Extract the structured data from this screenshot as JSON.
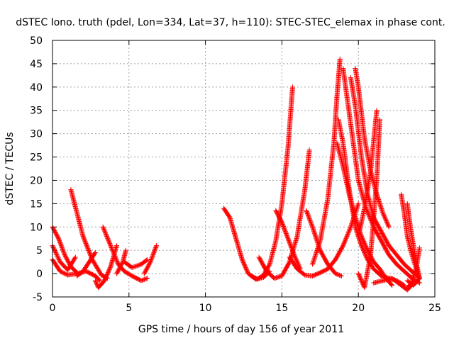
{
  "chart_data": {
    "type": "scatter",
    "title": "dSTEC Iono. truth (pdel, Lon=334, Lat=37, h=110): STEC-STEC_elemax in phase cont.",
    "xlabel": "GPS time / hours of day 156 of year 2011",
    "ylabel": "dSTEC  / TECUs",
    "xlim": [
      0,
      25
    ],
    "ylim": [
      -5,
      50
    ],
    "xticks": [
      0,
      5,
      10,
      15,
      20,
      25
    ],
    "yticks": [
      -5,
      0,
      5,
      10,
      15,
      20,
      25,
      30,
      35,
      40,
      45,
      50
    ],
    "grid": true,
    "marker": "+",
    "color": "#ff0000",
    "arcs": [
      {
        "x": [
          0.0,
          0.4,
          0.8,
          1.2,
          1.6
        ],
        "y": [
          10.0,
          7.5,
          4.0,
          1.5,
          0.2
        ]
      },
      {
        "x": [
          0.0,
          0.5,
          1.0,
          1.5
        ],
        "y": [
          6.0,
          2.5,
          0.8,
          3.5
        ]
      },
      {
        "x": [
          0.0,
          0.5,
          1.0,
          1.6,
          2.2,
          2.8,
          3.1
        ],
        "y": [
          3.0,
          0.5,
          -0.3,
          0.0,
          0.5,
          -0.5,
          -1.5
        ]
      },
      {
        "x": [
          1.2,
          1.6,
          2.0,
          2.6,
          3.2,
          3.6
        ],
        "y": [
          18.0,
          13.0,
          8.0,
          3.0,
          -0.3,
          -1.0
        ]
      },
      {
        "x": [
          1.6,
          2.0,
          2.4,
          2.8
        ],
        "y": [
          -0.5,
          0.5,
          2.5,
          4.5
        ]
      },
      {
        "x": [
          2.8,
          3.0,
          3.4,
          3.8,
          4.2
        ],
        "y": [
          -1.5,
          -3.0,
          -1.5,
          1.5,
          6.0
        ]
      },
      {
        "x": [
          3.3,
          3.8,
          4.3,
          4.7,
          5.2,
          5.8,
          6.2
        ],
        "y": [
          10.0,
          6.0,
          2.0,
          0.5,
          -0.5,
          -1.5,
          -1.0
        ]
      },
      {
        "x": [
          4.2,
          4.6,
          4.8
        ],
        "y": [
          0.0,
          2.5,
          5.0
        ]
      },
      {
        "x": [
          4.7,
          5.2,
          5.8,
          6.2
        ],
        "y": [
          2.5,
          1.3,
          2.0,
          3.0
        ]
      },
      {
        "x": [
          6.0,
          6.4,
          6.8
        ],
        "y": [
          0.0,
          2.5,
          6.0
        ]
      },
      {
        "x": [
          11.2,
          11.6,
          12.0,
          12.4,
          12.8,
          13.3,
          13.8,
          14.2
        ],
        "y": [
          14.0,
          12.0,
          7.5,
          3.0,
          0.0,
          -1.2,
          -0.8,
          0.5
        ]
      },
      {
        "x": [
          13.0,
          13.4,
          13.8,
          14.2,
          14.6,
          15.0,
          15.4,
          15.7
        ],
        "y": [
          -0.5,
          -1.2,
          -0.3,
          2.0,
          7.0,
          15.0,
          27.0,
          40.0
        ]
      },
      {
        "x": [
          13.5,
          14.0,
          14.5,
          15.0,
          15.5,
          16.0,
          16.5,
          16.8
        ],
        "y": [
          3.5,
          0.5,
          -1.0,
          -0.5,
          2.5,
          8.0,
          18.0,
          26.5
        ]
      },
      {
        "x": [
          14.6,
          15.0,
          15.4,
          15.8,
          16.2
        ],
        "y": [
          13.5,
          11.0,
          7.5,
          4.0,
          1.0
        ]
      },
      {
        "x": [
          16.6,
          17.0,
          17.5,
          18.0,
          18.5,
          18.9
        ],
        "y": [
          13.5,
          10.0,
          5.0,
          2.0,
          0.0,
          -0.5
        ]
      },
      {
        "x": [
          15.5,
          16.0,
          16.5,
          17.0,
          17.5,
          18.0,
          18.5,
          19.0,
          19.5,
          20.0
        ],
        "y": [
          3.5,
          1.0,
          -0.3,
          -0.5,
          0.2,
          1.0,
          3.0,
          6.0,
          10.0,
          15.0
        ]
      },
      {
        "x": [
          17.0,
          17.5,
          18.0,
          18.4,
          18.6,
          18.8
        ],
        "y": [
          2.0,
          7.0,
          16.0,
          28.0,
          38.0,
          46.0
        ]
      },
      {
        "x": [
          18.7,
          19.0,
          19.4,
          19.8,
          20.2,
          20.6,
          21.0,
          21.5,
          22.0,
          22.5,
          23.0
        ],
        "y": [
          33.0,
          28.0,
          18.0,
          10.0,
          6.0,
          3.0,
          1.0,
          -0.5,
          -1.0,
          -1.5,
          -2.5
        ]
      },
      {
        "x": [
          19.0,
          19.5,
          20.0,
          20.5,
          21.0,
          21.5,
          22.0,
          22.5,
          23.0,
          23.5,
          24.0
        ],
        "y": [
          44.0,
          32.0,
          20.0,
          14.0,
          10.0,
          7.0,
          4.0,
          2.0,
          0.5,
          -1.0,
          -2.0
        ]
      },
      {
        "x": [
          19.5,
          19.8,
          20.2,
          20.6,
          21.0,
          21.5,
          22.0,
          22.5,
          23.0,
          23.5,
          24.0
        ],
        "y": [
          42.0,
          36.0,
          25.0,
          17.0,
          12.0,
          9.0,
          6.0,
          4.0,
          2.0,
          0.5,
          -1.0
        ]
      },
      {
        "x": [
          19.8,
          20.0,
          20.4,
          20.8,
          21.2,
          21.6,
          22.0
        ],
        "y": [
          44.0,
          40.0,
          29.0,
          22.0,
          17.0,
          13.0,
          10.0
        ]
      },
      {
        "x": [
          18.6,
          19.0,
          19.4,
          19.8,
          20.2,
          20.6,
          21.0,
          21.4,
          21.8,
          22.2
        ],
        "y": [
          28.0,
          23.0,
          17.0,
          12.0,
          8.0,
          5.0,
          2.5,
          1.0,
          -1.0,
          -2.5
        ]
      },
      {
        "x": [
          20.0,
          20.4,
          20.8,
          21.2
        ],
        "y": [
          8.0,
          14.0,
          22.0,
          35.0
        ]
      },
      {
        "x": [
          20.0,
          20.4,
          20.8,
          21.2,
          21.4
        ],
        "y": [
          0.0,
          -3.0,
          4.0,
          20.0,
          33.0
        ]
      },
      {
        "x": [
          21.0,
          21.6,
          22.2,
          22.8,
          23.2,
          23.6
        ],
        "y": [
          -2.0,
          -1.5,
          -1.0,
          -2.5,
          -3.5,
          -2.0
        ]
      },
      {
        "x": [
          22.8,
          23.0,
          23.2,
          23.5,
          23.8,
          24.0
        ],
        "y": [
          17.0,
          13.0,
          8.0,
          4.0,
          1.0,
          -1.0
        ]
      },
      {
        "x": [
          23.2,
          23.4,
          23.6,
          23.8,
          24.0
        ],
        "y": [
          15.0,
          10.0,
          6.0,
          2.0,
          -1.0
        ]
      },
      {
        "x": [
          23.2,
          23.5,
          23.8,
          24.0
        ],
        "y": [
          -3.0,
          -2.0,
          1.5,
          5.5
        ]
      },
      {
        "x": [
          23.2,
          23.6,
          24.0
        ],
        "y": [
          -1.5,
          -2.5,
          -1.0
        ]
      }
    ]
  }
}
